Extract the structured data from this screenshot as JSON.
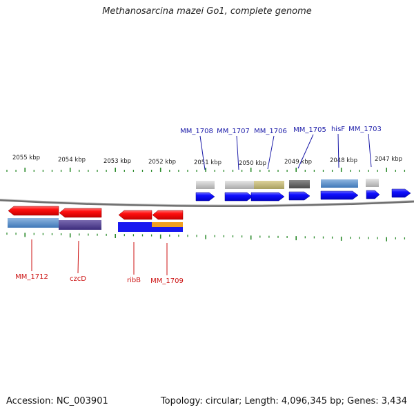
{
  "title": "Methanosarcina mazei Go1, complete genome",
  "accession": "Accession: NC_003901",
  "summary": "Topology: circular; Length: 4,096,345 bp; Genes: 3,434",
  "ruler_labels": [
    "2055 kbp",
    "2054 kbp",
    "2053 kbp",
    "2052 kbp",
    "2051 kbp",
    "2050 kbp",
    "2049 kbp",
    "2048 kbp",
    "2047 kbp"
  ],
  "colors": {
    "forward_arrow": "#0000ff",
    "reverse_arrow": "#ff0000",
    "forward_label": "#1a1aa8",
    "reverse_label": "#cc1111",
    "tick": "#2a8a2a",
    "backbone": "#6f6f6f"
  },
  "forward_genes": [
    "MM_1708",
    "MM_1707",
    "MM_1706",
    "MM_1705",
    "hisF",
    "MM_1703"
  ],
  "reverse_genes": [
    "MM_1712",
    "czcD",
    "ribB",
    "MM_1709"
  ]
}
